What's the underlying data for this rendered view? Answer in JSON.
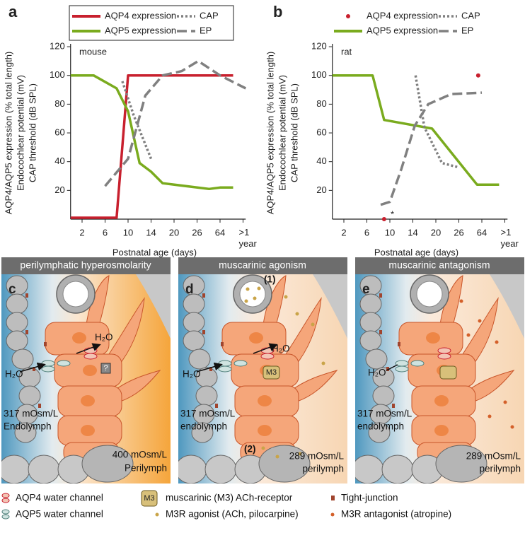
{
  "chart_data": [
    {
      "type": "line",
      "panel_label": "a",
      "annotations": [
        "mouse"
      ],
      "ylabel": [
        "AQP4/AQP5 expression (% total length)",
        "Endocochlear potential (mV)",
        "CAP threshold (dB SPL)"
      ],
      "xlabel": "Postnatal age (days)",
      "xlim": [
        0,
        400
      ],
      "xticks": [
        2,
        6,
        10,
        14,
        20,
        26,
        64,
        {
          "value": 365,
          "label": ">1 year"
        }
      ],
      "ylim": [
        0,
        122
      ],
      "yticks": [
        20,
        40,
        60,
        80,
        100,
        120
      ],
      "legend": "top",
      "legend_frame": true,
      "series": [
        {
          "name": "AQP4 expression",
          "color": "#c8202e",
          "dash": "solid",
          "x": [
            0,
            8,
            10,
            235
          ],
          "values": [
            1,
            1,
            100,
            100
          ]
        },
        {
          "name": "AQP5 expression",
          "color": "#7aab1e",
          "dash": "solid",
          "x": [
            0,
            4,
            8,
            10,
            12,
            14,
            17,
            46,
            64,
            235
          ],
          "values": [
            100,
            100,
            91,
            75,
            39,
            33,
            25,
            21,
            22,
            22
          ]
        },
        {
          "name": "CAP",
          "color": "#808080",
          "dash": "dotted",
          "x": [
            9,
            11,
            14
          ],
          "values": [
            96,
            72,
            42
          ]
        },
        {
          "name": "EP",
          "color": "#808080",
          "dash": "dashed",
          "x": [
            6,
            10,
            13,
            17,
            22,
            28,
            64,
            400
          ],
          "values": [
            23,
            42,
            86,
            100,
            103,
            110,
            100,
            91
          ]
        }
      ]
    },
    {
      "type": "line",
      "panel_label": "b",
      "annotations": [
        "rat",
        "*"
      ],
      "ylabel": [
        "AQP4/AQP5 expression (% total length)",
        "Endocochlear potential (mV)",
        "CAP threshold (dB SPL)"
      ],
      "xlabel": "Postnatal age (days)",
      "xlim": [
        0,
        400
      ],
      "xticks": [
        2,
        6,
        10,
        14,
        20,
        26,
        64,
        {
          "value": 365,
          "label": ">1 year"
        }
      ],
      "ylim": [
        0,
        122
      ],
      "yticks": [
        20,
        40,
        60,
        80,
        100,
        120
      ],
      "legend": "top",
      "legend_frame": false,
      "series": [
        {
          "name": "AQP4 expression",
          "color": "#c8202e",
          "marker": "dot",
          "x": [
            9,
            58
          ],
          "values": [
            0,
            100
          ]
        },
        {
          "name": "AQP5 expression",
          "color": "#7aab1e",
          "dash": "solid",
          "x": [
            0,
            7,
            9,
            19,
            56,
            290
          ],
          "values": [
            100,
            100,
            69,
            63,
            24,
            24
          ]
        },
        {
          "name": "CAP",
          "color": "#808080",
          "dash": "dotted",
          "x": [
            14.7,
            17,
            21.6,
            26
          ],
          "values": [
            100,
            64,
            39,
            36
          ]
        },
        {
          "name": "EP",
          "color": "#808080",
          "dash": "dashed",
          "x": [
            8.4,
            10,
            12,
            14.5,
            18,
            24,
            64
          ],
          "values": [
            10,
            12,
            35,
            65,
            80,
            87,
            88
          ]
        }
      ]
    }
  ],
  "panels": [
    {
      "label": "c",
      "header": "perilymphatic hyperosmolarity",
      "water": [
        "H₂O",
        "H₂O"
      ],
      "mark": "?",
      "endolymph": [
        "317 mOsm/L",
        "Endolymph"
      ],
      "perilymph": [
        "400 mOsm/L",
        "Perilymph"
      ]
    },
    {
      "label": "d",
      "header": "muscarinic agonism",
      "steps": [
        "(1)",
        "(2)"
      ],
      "water": [
        "H₂O",
        "H₂O"
      ],
      "receptor": "M3",
      "endolymph": [
        "317 mOsm/L",
        "endolymph"
      ],
      "perilymph": [
        "289 mOsm/L",
        "perilymph"
      ]
    },
    {
      "label": "e",
      "header": "muscarinic antagonism",
      "water": [
        "H₂O"
      ],
      "endolymph": [
        "317 mOsm/L",
        "endolymph"
      ],
      "perilymph": [
        "289 mOsm/L",
        "perilymph"
      ]
    }
  ],
  "legend": {
    "receptor_icon": "M3",
    "items": [
      "AQP4 water channel",
      "AQP5 water channel",
      "muscarinic (M3) ACh-receptor",
      "M3R agonist (ACh, pilocarpine)",
      "Tight-junction",
      "M3R antagonist (atropine)"
    ]
  }
}
